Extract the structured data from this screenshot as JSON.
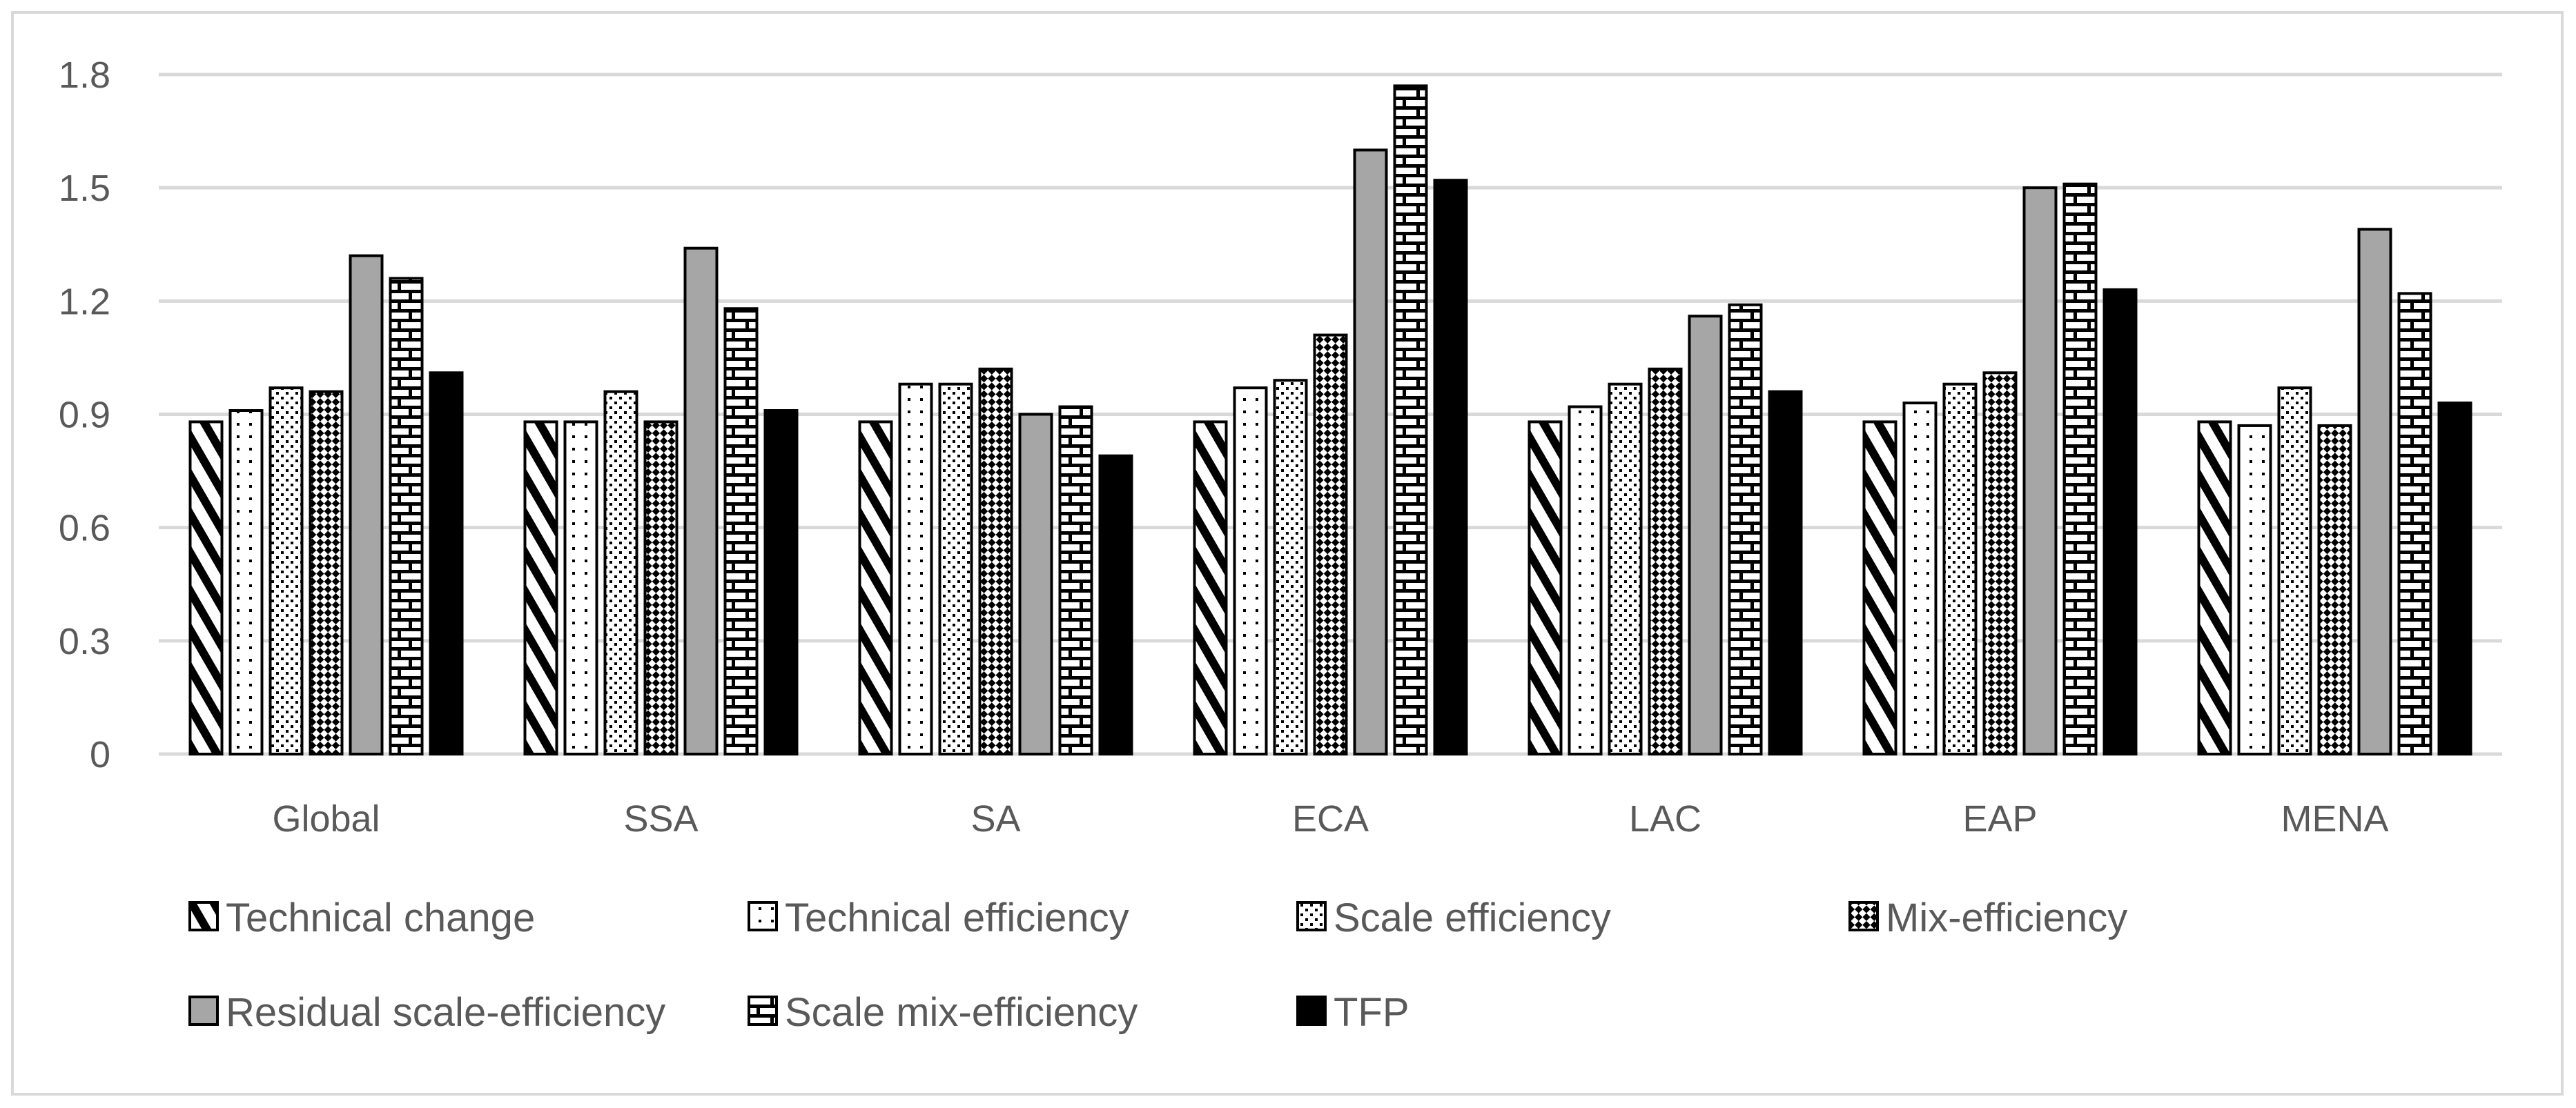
{
  "chart_data": {
    "type": "bar",
    "categories": [
      "Global",
      "SSA",
      "SA",
      "ECA",
      "LAC",
      "EAP",
      "MENA"
    ],
    "series": [
      {
        "name": "Technical change",
        "pattern": "diagonal-stripes",
        "values": [
          0.88,
          0.88,
          0.88,
          0.88,
          0.88,
          0.88,
          0.88
        ]
      },
      {
        "name": "Technical efficiency",
        "pattern": "sparse-dots",
        "values": [
          0.91,
          0.88,
          0.98,
          0.97,
          0.92,
          0.93,
          0.87
        ]
      },
      {
        "name": "Scale efficiency",
        "pattern": "dots",
        "values": [
          0.97,
          0.96,
          0.98,
          0.99,
          0.98,
          0.98,
          0.97
        ]
      },
      {
        "name": "Mix-efficiency",
        "pattern": "dense-checker",
        "values": [
          0.96,
          0.88,
          1.02,
          1.11,
          1.02,
          1.01,
          0.87
        ]
      },
      {
        "name": "Residual scale-efficiency",
        "pattern": "solid-gray",
        "values": [
          1.32,
          1.34,
          0.9,
          1.6,
          1.16,
          1.5,
          1.39
        ]
      },
      {
        "name": "Scale mix-efficiency",
        "pattern": "brick",
        "values": [
          1.26,
          1.18,
          0.92,
          1.77,
          1.19,
          1.51,
          1.22
        ]
      },
      {
        "name": "TFP",
        "pattern": "solid-black",
        "values": [
          1.01,
          0.91,
          0.79,
          1.52,
          0.96,
          1.23,
          0.93
        ]
      }
    ],
    "yticks": [
      "0",
      "0.3",
      "0.6",
      "0.9",
      "1.2",
      "1.5",
      "1.8"
    ],
    "ylim": [
      0,
      1.8
    ],
    "grid": true,
    "legend_position": "bottom",
    "title": "",
    "xlabel": "",
    "ylabel": "",
    "colors": {
      "border": "#d9d9d9",
      "grid": "#d9d9d9",
      "text": "#595959",
      "bar_outline": "#000000",
      "gray_fill": "#a6a6a6",
      "black_fill": "#000000"
    }
  }
}
